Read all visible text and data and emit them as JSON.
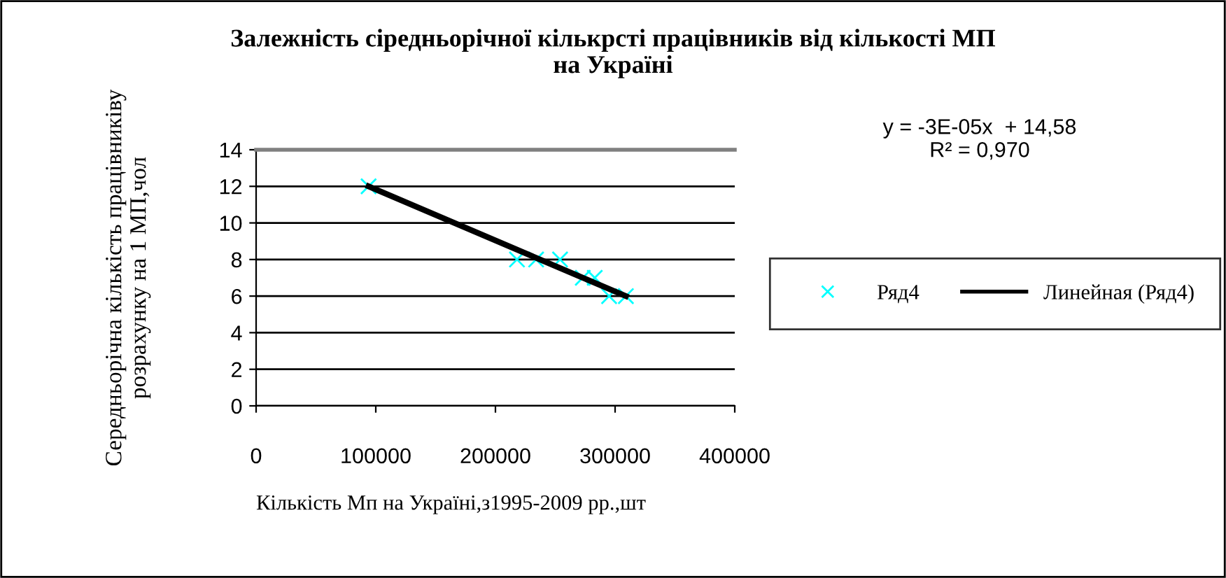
{
  "chart_data": {
    "type": "scatter",
    "title": "Залежність сіредньорічної кількрсті працівників від кількості МП\nна Україні",
    "xlabel": "Кількість Мп на Україні,з1995-2009 рр.,шт",
    "ylabel": "Середньорічна кількість працівниківу\nрозрахунку на 1 МП,чол",
    "annotations": [
      "y = -3E-05x  + 14,58\nR² = 0,970"
    ],
    "series": [
      {
        "name": "Ряд4",
        "color": "#00ffff",
        "marker": "cross",
        "x": [
          94000,
          218000,
          234000,
          254000,
          273000,
          283000,
          295000,
          309000
        ],
        "values": [
          12,
          8,
          8,
          8,
          7,
          7,
          6,
          6
        ]
      },
      {
        "name": "Линейная (Ряд4)",
        "type": "line",
        "color": "#000000",
        "line_style": "solid",
        "x": [
          94000,
          309000
        ],
        "values": [
          12,
          6
        ]
      }
    ],
    "xlim": [
      0,
      400000
    ],
    "xticks": [
      0,
      100000,
      200000,
      300000,
      400000
    ],
    "ylim": [
      0,
      14
    ],
    "yticks": [
      0,
      2,
      4,
      6,
      8,
      10,
      12,
      14
    ],
    "grid": "y",
    "legend": "right"
  }
}
